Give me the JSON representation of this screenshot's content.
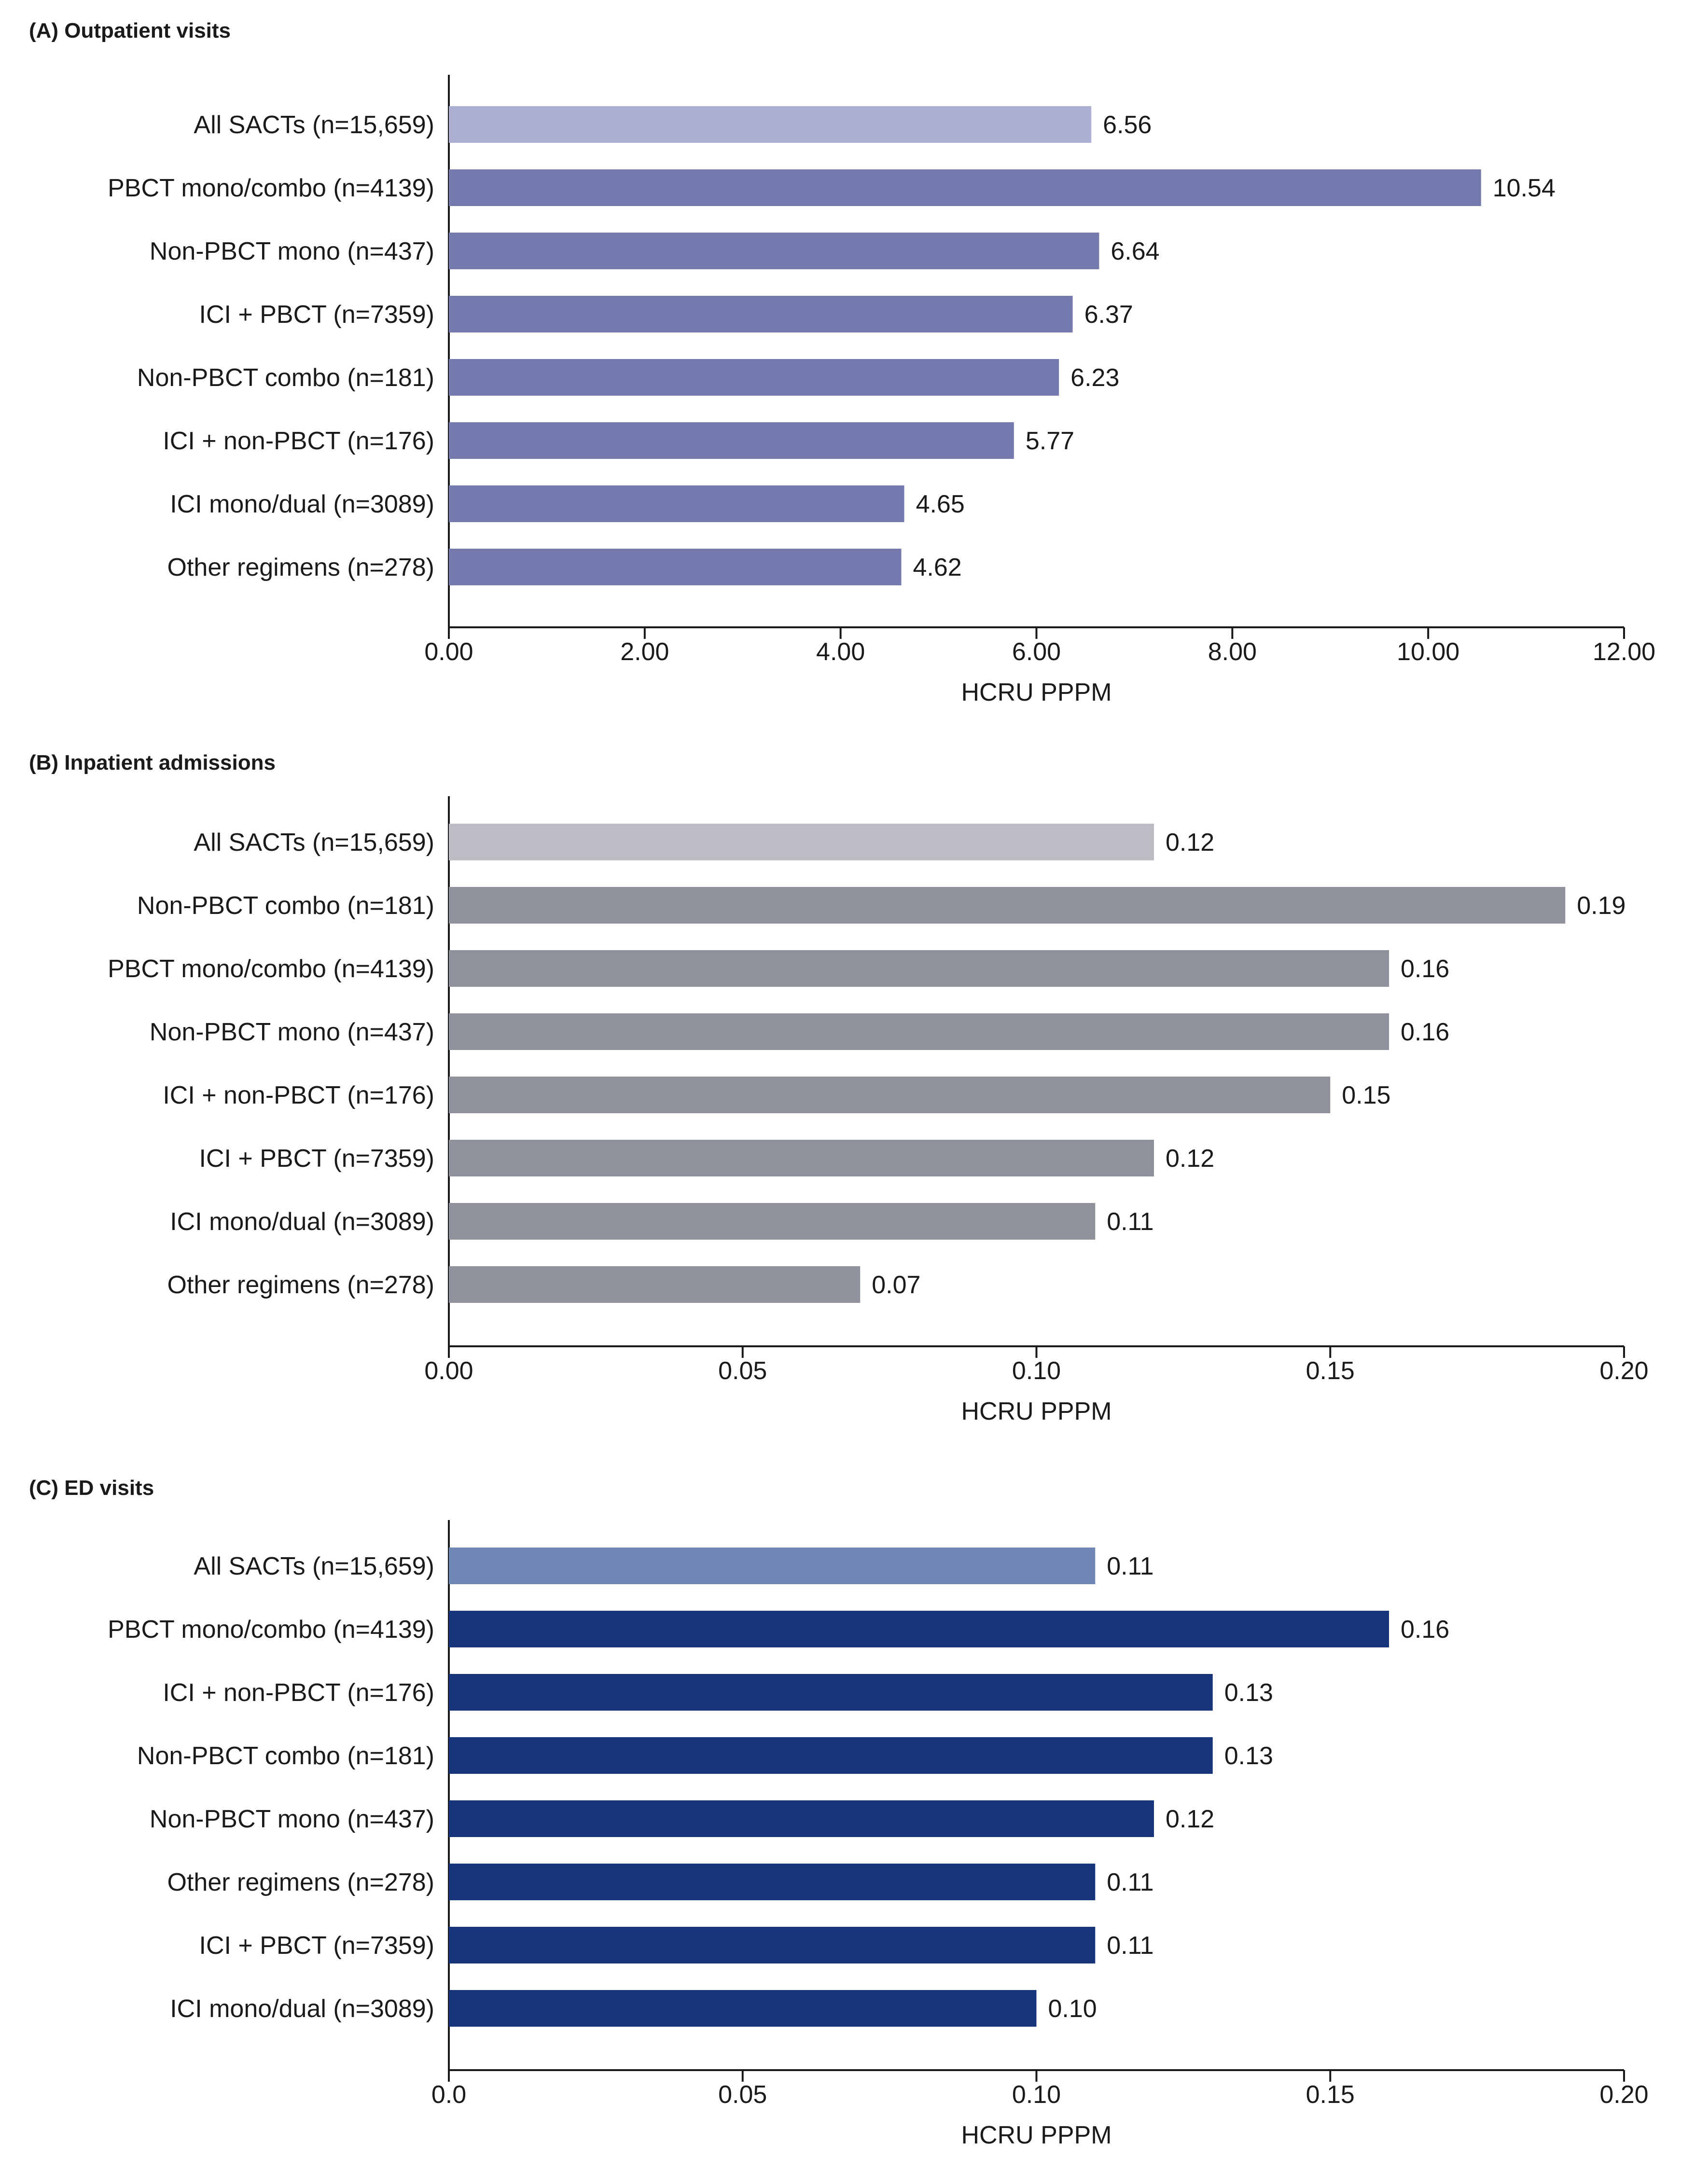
{
  "chart_data": [
    {
      "type": "bar",
      "orientation": "horizontal",
      "title": "(A) Outpatient visits",
      "xlabel": "HCRU PPPM",
      "ylabel": "",
      "xlim": [
        0,
        12
      ],
      "ticks": [
        "0.00",
        "2.00",
        "4.00",
        "6.00",
        "8.00",
        "10.00",
        "12.00"
      ],
      "tick_values": [
        0,
        2,
        4,
        6,
        8,
        10,
        12
      ],
      "categories": [
        "All SACTs (n=15,659)",
        "PBCT mono/combo (n=4139)",
        "Non-PBCT mono (n=437)",
        "ICI + PBCT (n=7359)",
        "Non-PBCT combo (n=181)",
        "ICI + non-PBCT (n=176)",
        "ICI mono/dual (n=3089)",
        "Other regimens (n=278)"
      ],
      "values": [
        6.56,
        10.54,
        6.64,
        6.37,
        6.23,
        5.77,
        4.65,
        4.62
      ],
      "value_labels": [
        "6.56",
        "10.54",
        "6.64",
        "6.37",
        "6.23",
        "5.77",
        "4.65",
        "4.62"
      ],
      "colors": {
        "highlight": "#acafd2",
        "bar": "#7479ae"
      }
    },
    {
      "type": "bar",
      "orientation": "horizontal",
      "title": "(B) Inpatient admissions",
      "xlabel": "HCRU PPPM",
      "ylabel": "",
      "xlim": [
        0,
        0.2
      ],
      "ticks": [
        "0.00",
        "0.05",
        "0.10",
        "0.15",
        "0.20"
      ],
      "tick_values": [
        0,
        0.05,
        0.1,
        0.15,
        0.2
      ],
      "categories": [
        "All SACTs (n=15,659)",
        "Non-PBCT combo (n=181)",
        "PBCT mono/combo (n=4139)",
        "Non-PBCT mono (n=437)",
        "ICI + non-PBCT (n=176)",
        "ICI + PBCT (n=7359)",
        "ICI mono/dual (n=3089)",
        "Other regimens (n=278)"
      ],
      "values": [
        0.12,
        0.19,
        0.16,
        0.16,
        0.15,
        0.12,
        0.11,
        0.07
      ],
      "value_labels": [
        "0.12",
        "0.19",
        "0.16",
        "0.16",
        "0.15",
        "0.12",
        "0.11",
        "0.07"
      ],
      "colors": {
        "highlight": "#bcbcc4",
        "bar": "#8f929b"
      }
    },
    {
      "type": "bar",
      "orientation": "horizontal",
      "title": "(C) ED visits",
      "xlabel": "HCRU PPPM",
      "ylabel": "",
      "xlim": [
        0,
        0.2
      ],
      "ticks": [
        "0.0",
        "0.05",
        "0.10",
        "0.15",
        "0.20"
      ],
      "tick_values": [
        0,
        0.05,
        0.1,
        0.15,
        0.2
      ],
      "categories": [
        "All SACTs (n=15,659)",
        "PBCT mono/combo (n=4139)",
        "ICI + non-PBCT (n=176)",
        "Non-PBCT combo (n=181)",
        "Non-PBCT mono (n=437)",
        "Other regimens (n=278)",
        "ICI + PBCT (n=7359)",
        "ICI mono/dual (n=3089)"
      ],
      "values": [
        0.11,
        0.16,
        0.13,
        0.13,
        0.12,
        0.11,
        0.11,
        0.1
      ],
      "value_labels": [
        "0.11",
        "0.16",
        "0.13",
        "0.13",
        "0.12",
        "0.11",
        "0.11",
        "0.10"
      ],
      "colors": {
        "highlight": "#6f87b7",
        "bar": "#17357a"
      }
    }
  ]
}
